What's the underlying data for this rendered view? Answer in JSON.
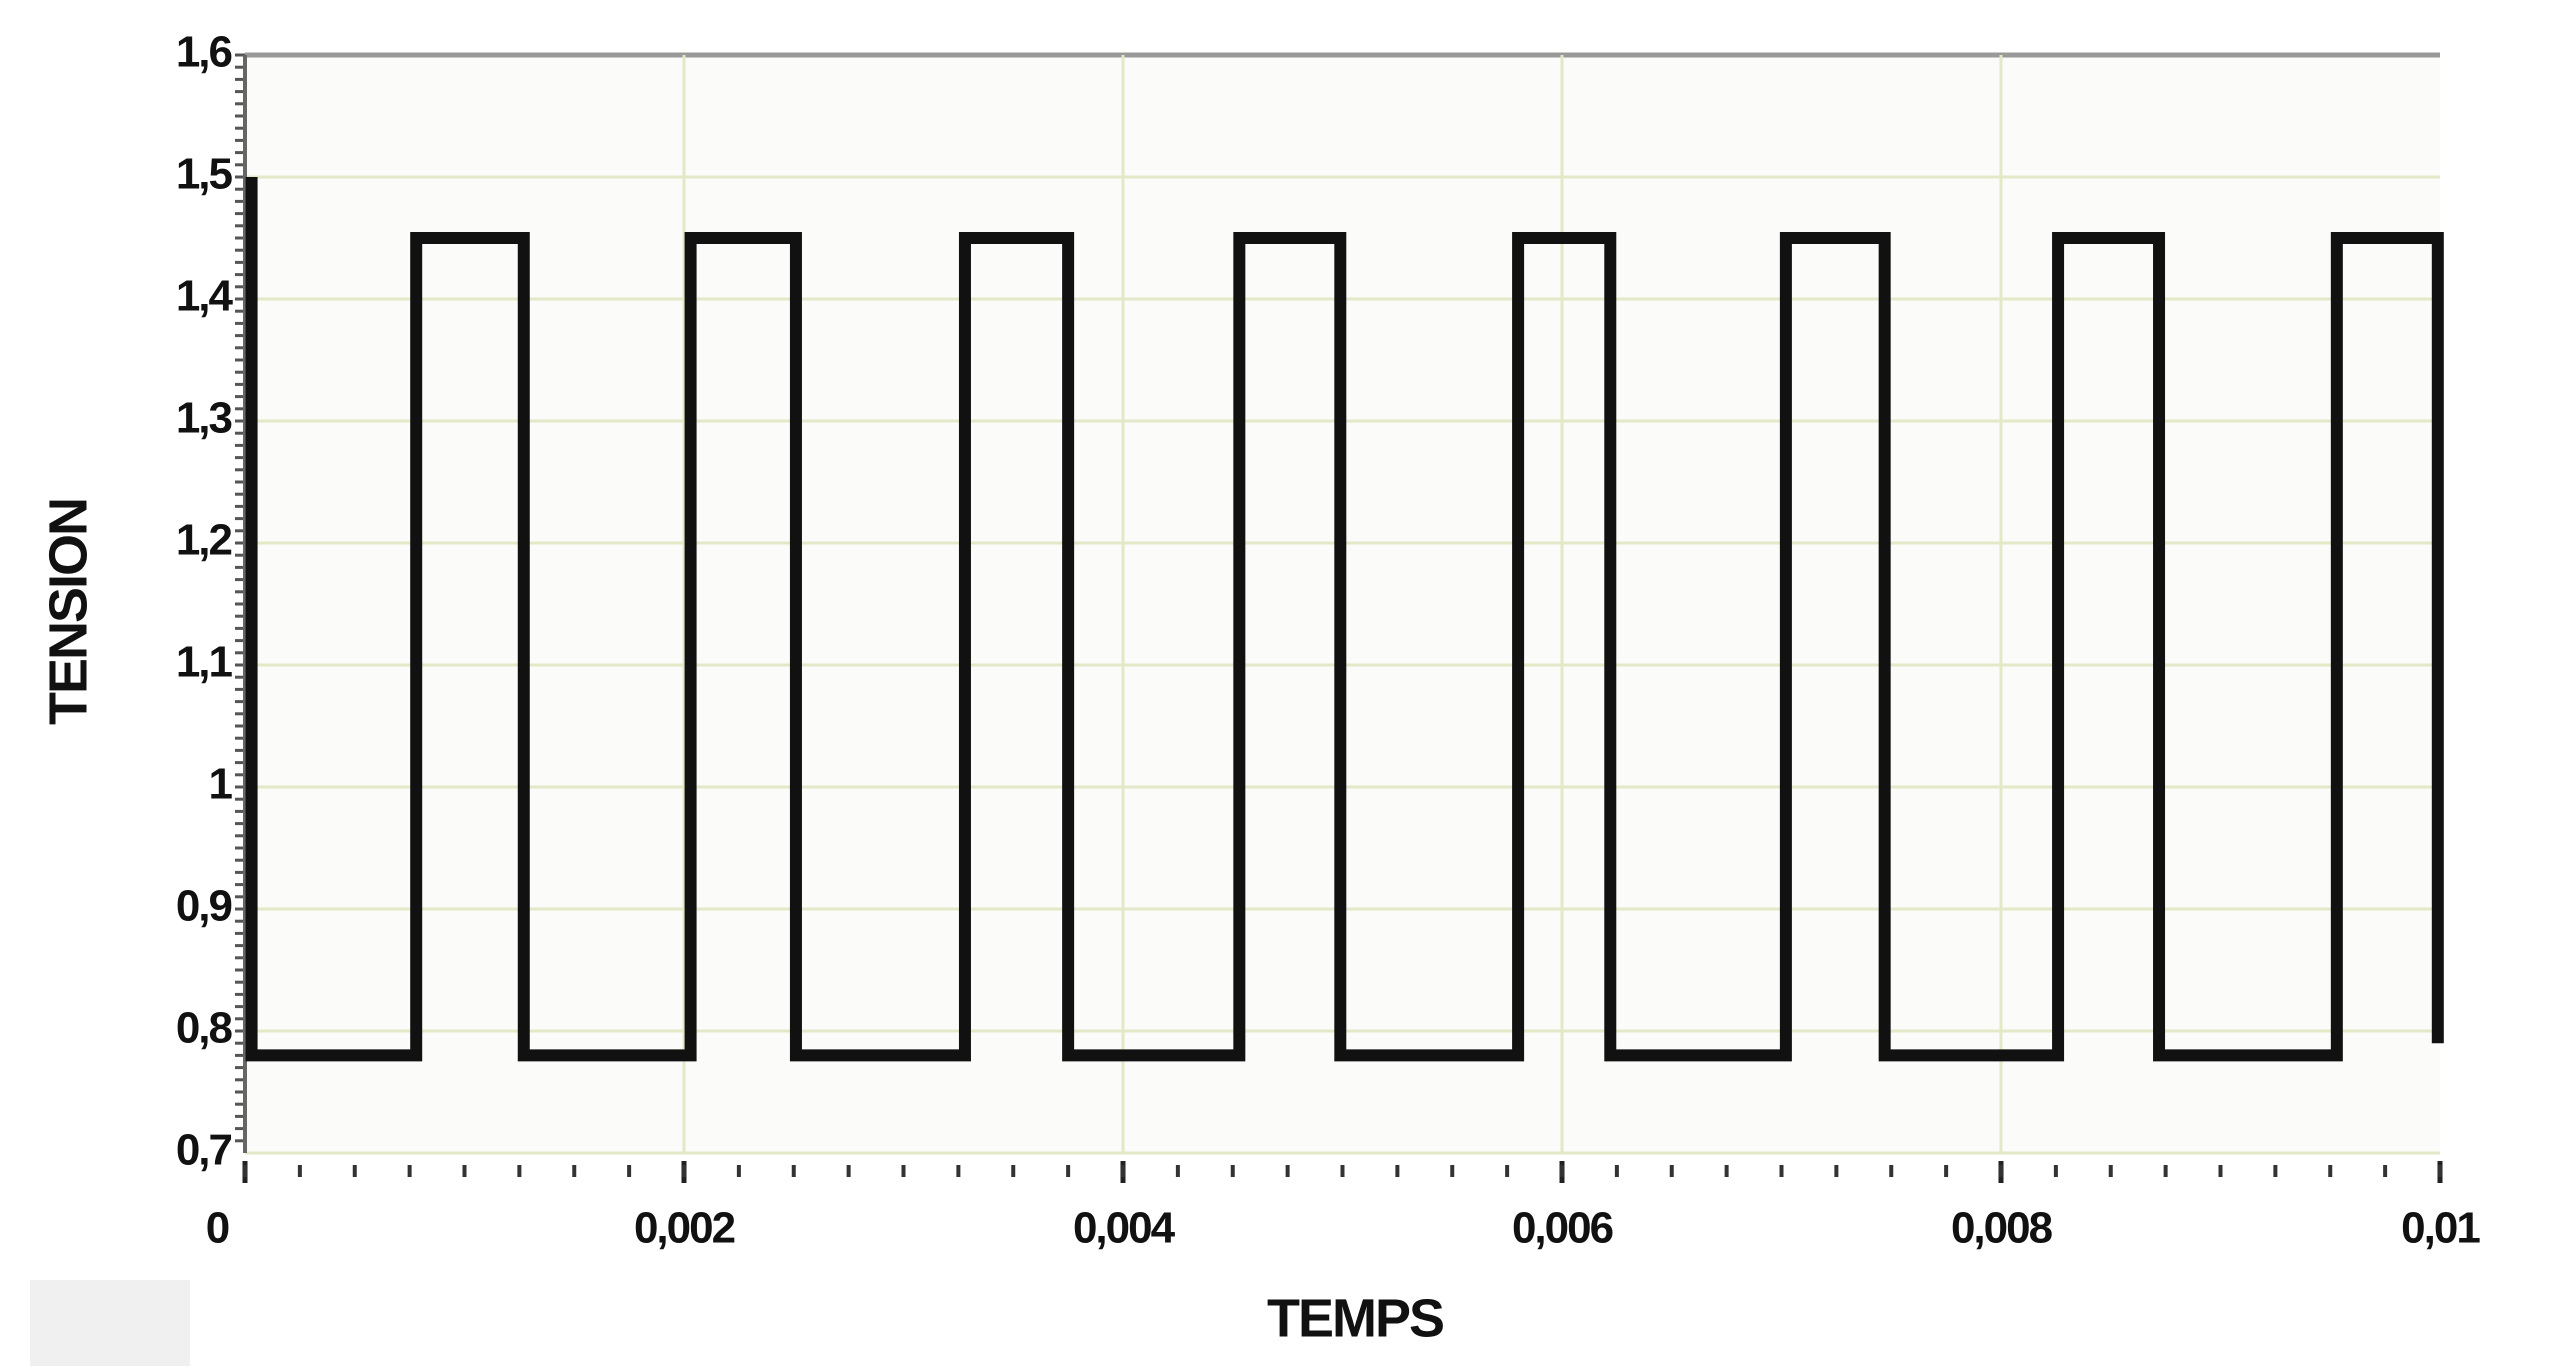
{
  "chart_data": {
    "type": "line",
    "x_label": "TEMPS",
    "y_label": "TENSION",
    "xlim": [
      0,
      0.01
    ],
    "ylim": [
      0.7,
      1.6
    ],
    "xticks": [
      0,
      {
        "value": 0.002,
        "label": "0,002"
      },
      {
        "value": 0.004,
        "label": "0,004"
      },
      {
        "value": 0.006,
        "label": "0,006"
      },
      {
        "value": 0.008,
        "label": "0,008"
      },
      {
        "value": 0.01,
        "label": "0,01"
      }
    ],
    "yticks": [
      {
        "value": 0.7,
        "label": "0,7"
      },
      {
        "value": 0.8,
        "label": "0,8"
      },
      {
        "value": 0.9,
        "label": "0,9"
      },
      1,
      {
        "value": 1.1,
        "label": "1,1"
      },
      {
        "value": 1.2,
        "label": "1,2"
      },
      {
        "value": 1.3,
        "label": "1,3"
      },
      {
        "value": 1.4,
        "label": "1,4"
      },
      {
        "value": 1.5,
        "label": "1,5"
      },
      {
        "value": 1.6,
        "label": "1,6"
      }
    ],
    "grid": true,
    "series": [
      {
        "color": "#111111",
        "x": [
          3e-05,
          3e-05,
          0.00078,
          0.00078,
          0.00127,
          0.00127,
          0.00203,
          0.00203,
          0.00251,
          0.00251,
          0.00328,
          0.00328,
          0.00375,
          0.00375,
          0.00453,
          0.00453,
          0.00499,
          0.00499,
          0.0058,
          0.0058,
          0.00622,
          0.00622,
          0.00702,
          0.00702,
          0.00747,
          0.00747,
          0.00826,
          0.00826,
          0.00872,
          0.00872,
          0.00953,
          0.00953,
          0.00999,
          0.00999
        ],
        "values": [
          1.5,
          0.78,
          0.78,
          1.45,
          1.45,
          0.78,
          0.78,
          1.45,
          1.45,
          0.78,
          0.78,
          1.45,
          1.45,
          0.78,
          0.78,
          1.45,
          1.45,
          0.78,
          0.78,
          1.45,
          1.45,
          0.78,
          0.78,
          1.45,
          1.45,
          0.78,
          0.78,
          1.45,
          1.45,
          0.78,
          0.78,
          1.45,
          1.45,
          0.79
        ]
      }
    ]
  }
}
